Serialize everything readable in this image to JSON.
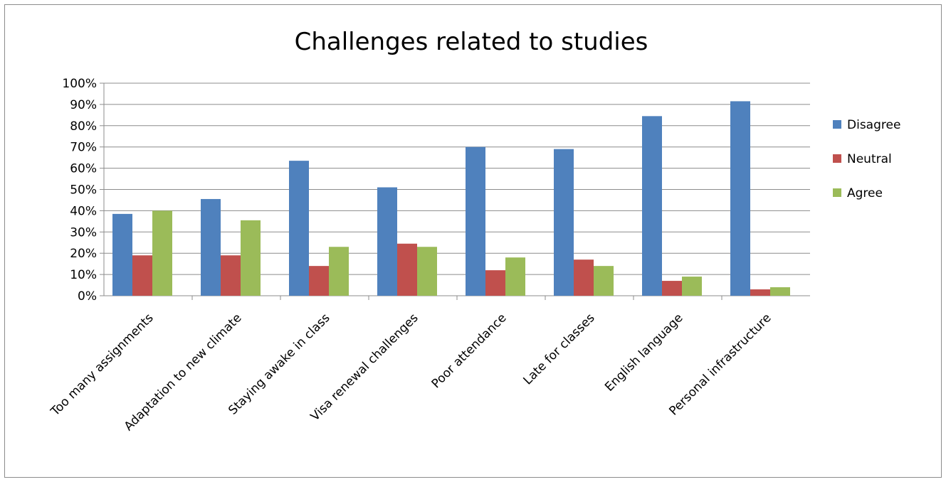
{
  "chart_data": {
    "type": "bar",
    "title": "Challenges related to studies",
    "xlabel": "",
    "ylabel": "",
    "ylim": [
      0,
      100
    ],
    "yticks": [
      "0%",
      "10%",
      "20%",
      "30%",
      "40%",
      "50%",
      "60%",
      "70%",
      "80%",
      "90%",
      "100%"
    ],
    "grid": true,
    "legend_position": "right",
    "categories": [
      "Too many assignments",
      "Adaptation to new climate",
      "Staying awake in class",
      "Visa renewal challenges",
      "Poor attendance",
      "Late for classes",
      "English language",
      "Personal infrastructure"
    ],
    "series": [
      {
        "name": "Disagree",
        "color": "#4f81bd",
        "values": [
          38.5,
          45.5,
          63.5,
          51,
          70,
          69,
          84.5,
          91.5
        ]
      },
      {
        "name": "Neutral",
        "color": "#c0504d",
        "values": [
          19,
          19,
          14,
          24.5,
          12,
          17,
          7,
          3
        ]
      },
      {
        "name": "Agree",
        "color": "#9bbb59",
        "values": [
          40,
          35.5,
          23,
          23,
          18,
          14,
          9,
          4
        ]
      }
    ]
  }
}
